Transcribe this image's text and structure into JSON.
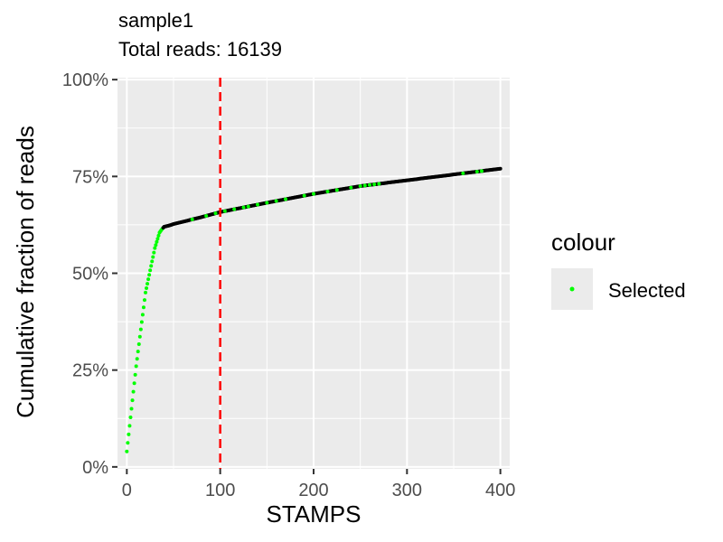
{
  "chart_data": {
    "type": "scatter",
    "title": "sample1",
    "subtitle": "Total reads: 16139",
    "xlabel": "STAMPS",
    "ylabel": "Cumulative fraction of reads",
    "xlim": [
      -10,
      410
    ],
    "ylim": [
      -0.005,
      1.005
    ],
    "x_ticks": [
      0,
      100,
      200,
      300,
      400
    ],
    "y_ticks": [
      0,
      0.25,
      0.5,
      0.75,
      1.0
    ],
    "y_tick_labels": [
      "0%",
      "25%",
      "50%",
      "75%",
      "100%"
    ],
    "grid": true,
    "cutoff_line": {
      "x": 100,
      "color": "#ff0000",
      "style": "dashed"
    },
    "curve": {
      "x": [
        0,
        10,
        20,
        30,
        35,
        38,
        40,
        45,
        50,
        60,
        80,
        100,
        150,
        200,
        250,
        300,
        350,
        400
      ],
      "y": [
        0.04,
        0.26,
        0.45,
        0.565,
        0.605,
        0.615,
        0.62,
        0.623,
        0.627,
        0.633,
        0.645,
        0.658,
        0.682,
        0.705,
        0.725,
        0.74,
        0.755,
        0.77
      ],
      "color": "#000000"
    },
    "highlight_points": {
      "x": [
        70,
        85,
        95,
        105,
        115,
        125,
        130,
        140,
        150,
        160,
        170,
        190,
        200,
        215,
        225,
        240,
        250,
        255,
        260,
        265,
        270,
        360,
        375,
        380
      ],
      "color": "#00ff00"
    },
    "legend": {
      "title": "colour",
      "placement": "right",
      "entries": [
        {
          "label": "Selected",
          "color": "#00ff00"
        }
      ]
    }
  }
}
